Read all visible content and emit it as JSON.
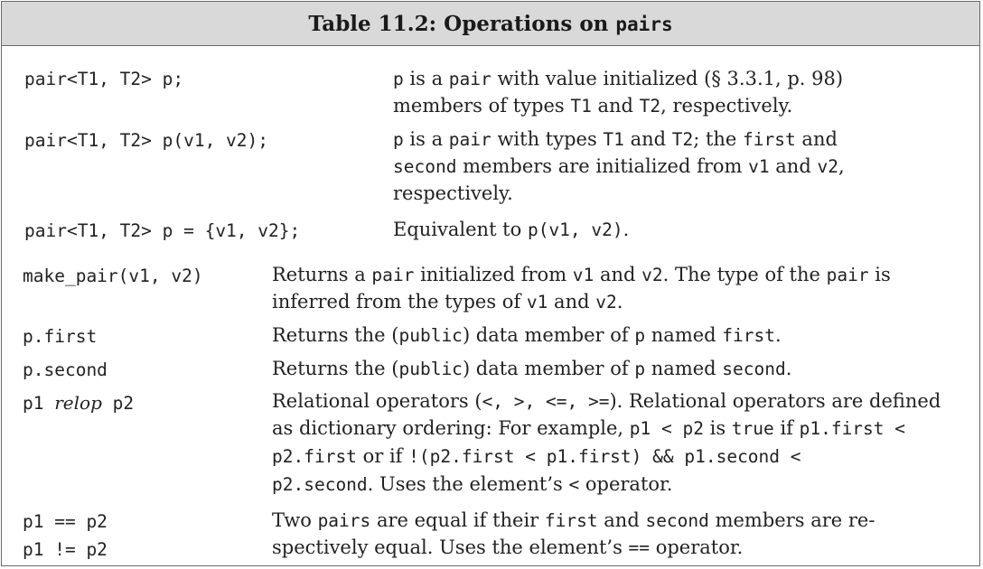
{
  "title": {
    "prefix": "Table 11.2: Operations on ",
    "code": "pairs"
  },
  "rows": [
    {
      "code": "pair<T1, T2> p;",
      "lines": [
        [
          {
            "t": "p",
            "m": true
          },
          {
            "t": " is a "
          },
          {
            "t": "pair",
            "m": true
          },
          {
            "t": " with value initialized (§ 3.3.1, p. 98)"
          }
        ],
        [
          {
            "t": "members of types "
          },
          {
            "t": "T1",
            "m": true
          },
          {
            "t": " and "
          },
          {
            "t": "T2",
            "m": true
          },
          {
            "t": ", respectively."
          }
        ]
      ]
    },
    {
      "code": "pair<T1, T2> p(v1, v2);",
      "lines": [
        [
          {
            "t": "p",
            "m": true
          },
          {
            "t": " is a "
          },
          {
            "t": "pair",
            "m": true
          },
          {
            "t": " with types "
          },
          {
            "t": "T1",
            "m": true
          },
          {
            "t": " and "
          },
          {
            "t": "T2",
            "m": true
          },
          {
            "t": "; the "
          },
          {
            "t": "first",
            "m": true
          },
          {
            "t": " and"
          }
        ],
        [
          {
            "t": "second",
            "m": true
          },
          {
            "t": " members are initialized from "
          },
          {
            "t": "v1",
            "m": true
          },
          {
            "t": " and "
          },
          {
            "t": "v2",
            "m": true
          },
          {
            "t": ","
          }
        ],
        [
          {
            "t": "respectively."
          }
        ]
      ]
    },
    {
      "code": "pair<T1, T2> p = {v1, v2};",
      "lines": [
        [
          {
            "t": "Equivalent to "
          },
          {
            "t": "p(v1, v2)",
            "m": true
          },
          {
            "t": "."
          }
        ]
      ]
    },
    {
      "code": "make_pair(v1, v2)",
      "lines": [
        [
          {
            "t": "Returns a "
          },
          {
            "t": "pair",
            "m": true
          },
          {
            "t": " initialized from "
          },
          {
            "t": "v1",
            "m": true
          },
          {
            "t": " and "
          },
          {
            "t": "v2",
            "m": true
          },
          {
            "t": ". The type of the "
          },
          {
            "t": "pair",
            "m": true
          },
          {
            "t": " is"
          }
        ],
        [
          {
            "t": "inferred from the types of "
          },
          {
            "t": "v1",
            "m": true
          },
          {
            "t": " and "
          },
          {
            "t": "v2",
            "m": true
          },
          {
            "t": "."
          }
        ]
      ]
    },
    {
      "code": "p.first",
      "lines": [
        [
          {
            "t": "Returns the ("
          },
          {
            "t": "public",
            "m": true
          },
          {
            "t": ") data member of "
          },
          {
            "t": "p",
            "m": true
          },
          {
            "t": " named "
          },
          {
            "t": "first",
            "m": true
          },
          {
            "t": "."
          }
        ]
      ]
    },
    {
      "code": "p.second",
      "lines": [
        [
          {
            "t": "Returns the ("
          },
          {
            "t": "public",
            "m": true
          },
          {
            "t": ") data member of "
          },
          {
            "t": "p",
            "m": true
          },
          {
            "t": " named "
          },
          {
            "t": "second",
            "m": true
          },
          {
            "t": "."
          }
        ]
      ]
    },
    {
      "code_parts": [
        {
          "t": "p1 ",
          "m": true
        },
        {
          "t": "relop",
          "i": true
        },
        {
          "t": " p2",
          "m": true
        }
      ],
      "lines": [
        [
          {
            "t": "Relational operators ("
          },
          {
            "t": "<, >, <=, >=",
            "m": true
          },
          {
            "t": "). Relational operators are defined"
          }
        ],
        [
          {
            "t": "as dictionary ordering: For example, "
          },
          {
            "t": "p1 < p2",
            "m": true
          },
          {
            "t": " is "
          },
          {
            "t": "true",
            "m": true
          },
          {
            "t": " if "
          },
          {
            "t": "p1.first <",
            "m": true
          }
        ],
        [
          {
            "t": "p2.first",
            "m": true
          },
          {
            "t": " or if "
          },
          {
            "t": "!(p2.first < p1.first) && p1.second <",
            "m": true
          }
        ],
        [
          {
            "t": "p2.second",
            "m": true
          },
          {
            "t": ". Uses the element’s "
          },
          {
            "t": "<",
            "m": true
          },
          {
            "t": " operator."
          }
        ]
      ]
    },
    {
      "code_lines": [
        "p1 == p2",
        "p1 != p2"
      ],
      "lines": [
        [
          {
            "t": "Two "
          },
          {
            "t": "pairs",
            "m": true
          },
          {
            "t": " are equal if their "
          },
          {
            "t": "first",
            "m": true
          },
          {
            "t": " and "
          },
          {
            "t": "second",
            "m": true
          },
          {
            "t": " members are re-"
          }
        ],
        [
          {
            "t": "spectively equal. Uses the element’s "
          },
          {
            "t": "==",
            "m": true
          },
          {
            "t": " operator."
          }
        ]
      ]
    }
  ]
}
